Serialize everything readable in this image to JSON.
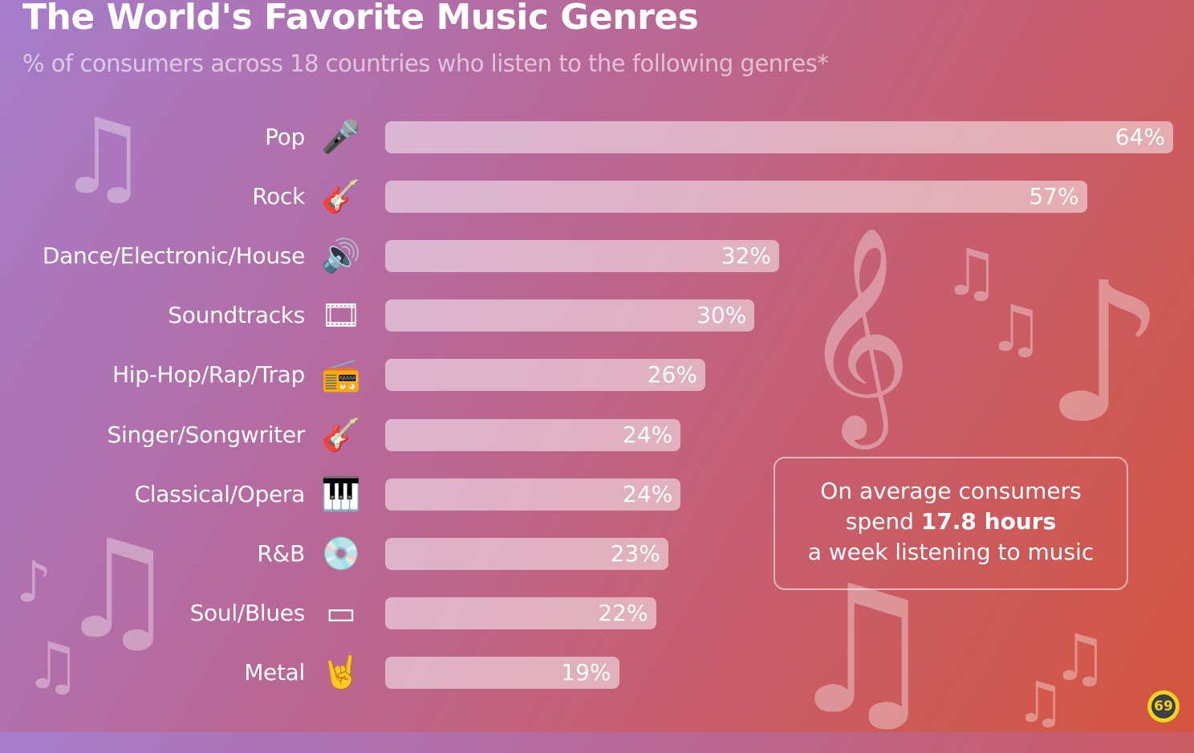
{
  "chart_data": {
    "type": "bar",
    "orientation": "horizontal",
    "title": "The World's Favorite Music Genres",
    "subtitle": "% of consumers across 18 countries who listen to the following genres*",
    "categories": [
      "Pop",
      "Rock",
      "Dance/Electronic/House",
      "Soundtracks",
      "Hip-Hop/Rap/Trap",
      "Singer/Songwriter",
      "Classical/Opera",
      "R&B",
      "Soul/Blues",
      "Metal"
    ],
    "values": [
      64,
      57,
      32,
      30,
      26,
      24,
      24,
      23,
      22,
      19
    ],
    "value_labels": [
      "64%",
      "57%",
      "32%",
      "30%",
      "26%",
      "24%",
      "24%",
      "23%",
      "22%",
      "19%"
    ],
    "icons": [
      "microphone-icon",
      "electric-guitar-icon",
      "speaker-icon",
      "film-reel-icon",
      "boombox-icon",
      "acoustic-guitar-icon",
      "piano-icon",
      "vinyl-record-icon",
      "harmonica-icon",
      "rock-hand-icon"
    ],
    "xlim": [
      0,
      64
    ],
    "grid": false,
    "bar_color": "#ffffff80"
  },
  "callout": {
    "line1": "On average consumers",
    "line2_pre": "spend ",
    "line2_bold": "17.8 hours",
    "line3": "a week listening to music"
  },
  "colors": {
    "bg_start": "#a57dcc",
    "bg_end": "#d4553e",
    "logo": "#f5d31c"
  }
}
